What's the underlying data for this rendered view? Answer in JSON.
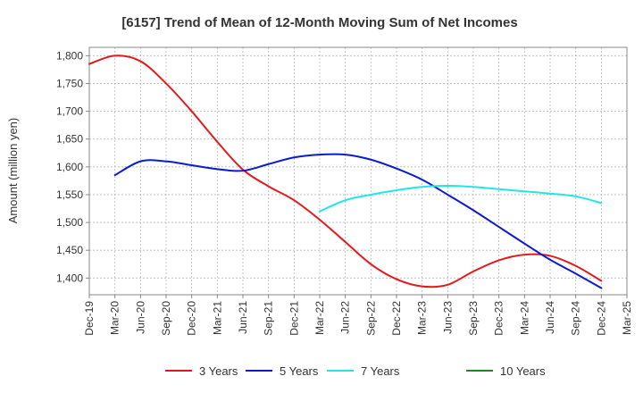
{
  "chart_data": {
    "type": "line",
    "title": "[6157]  Trend of Mean of 12-Month Moving Sum of Net Incomes",
    "ylabel": "Amount (million yen)",
    "xlabel": "",
    "ylim": [
      1370,
      1815
    ],
    "yticks": [
      1400,
      1450,
      1500,
      1550,
      1600,
      1650,
      1700,
      1750,
      1800
    ],
    "ytick_labels": [
      "1,400",
      "1,450",
      "1,500",
      "1,550",
      "1,600",
      "1,650",
      "1,700",
      "1,750",
      "1,800"
    ],
    "categories": [
      "Dec-19",
      "Mar-20",
      "Jun-20",
      "Sep-20",
      "Dec-20",
      "Mar-21",
      "Jun-21",
      "Sep-21",
      "Dec-21",
      "Mar-22",
      "Jun-22",
      "Sep-22",
      "Dec-22",
      "Mar-23",
      "Jun-23",
      "Sep-23",
      "Dec-23",
      "Mar-24",
      "Jun-24",
      "Sep-24",
      "Dec-24",
      "Mar-25"
    ],
    "grid": true,
    "legend_position": "bottom",
    "series": [
      {
        "name": "3 Years",
        "color": "#e31a1c",
        "points": [
          [
            "Dec-19",
            1785
          ],
          [
            "Mar-20",
            1800
          ],
          [
            "Jun-20",
            1790
          ],
          [
            "Sep-20",
            1750
          ],
          [
            "Dec-20",
            1700
          ],
          [
            "Mar-21",
            1645
          ],
          [
            "Jun-21",
            1595
          ],
          [
            "Sep-21",
            1565
          ],
          [
            "Dec-21",
            1540
          ],
          [
            "Mar-22",
            1505
          ],
          [
            "Jun-22",
            1465
          ],
          [
            "Sep-22",
            1425
          ],
          [
            "Dec-22",
            1398
          ],
          [
            "Mar-23",
            1385
          ],
          [
            "Jun-23",
            1388
          ],
          [
            "Sep-23",
            1412
          ],
          [
            "Dec-23",
            1432
          ],
          [
            "Mar-24",
            1442
          ],
          [
            "Jun-24",
            1440
          ],
          [
            "Sep-24",
            1422
          ],
          [
            "Dec-24",
            1395
          ]
        ]
      },
      {
        "name": "5 Years",
        "color": "#0b1bd0",
        "points": [
          [
            "Mar-20",
            1585
          ],
          [
            "Jun-20",
            1610
          ],
          [
            "Sep-20",
            1610
          ],
          [
            "Dec-20",
            1603
          ],
          [
            "Mar-21",
            1596
          ],
          [
            "Jun-21",
            1593
          ],
          [
            "Sep-21",
            1605
          ],
          [
            "Dec-21",
            1617
          ],
          [
            "Mar-22",
            1622
          ],
          [
            "Jun-22",
            1622
          ],
          [
            "Sep-22",
            1613
          ],
          [
            "Dec-22",
            1597
          ],
          [
            "Mar-23",
            1577
          ],
          [
            "Jun-23",
            1550
          ],
          [
            "Sep-23",
            1522
          ],
          [
            "Dec-23",
            1492
          ],
          [
            "Mar-24",
            1462
          ],
          [
            "Jun-24",
            1433
          ],
          [
            "Sep-24",
            1408
          ],
          [
            "Dec-24",
            1382
          ]
        ]
      },
      {
        "name": "7 Years",
        "color": "#22e5e8",
        "points": [
          [
            "Mar-22",
            1520
          ],
          [
            "Jun-22",
            1540
          ],
          [
            "Sep-22",
            1550
          ],
          [
            "Dec-22",
            1558
          ],
          [
            "Mar-23",
            1564
          ],
          [
            "Jun-23",
            1566
          ],
          [
            "Sep-23",
            1564
          ],
          [
            "Dec-23",
            1560
          ],
          [
            "Mar-24",
            1556
          ],
          [
            "Jun-24",
            1552
          ],
          [
            "Sep-24",
            1547
          ],
          [
            "Dec-24",
            1535
          ]
        ]
      },
      {
        "name": "10 Years",
        "color": "#1e8a1e",
        "points": []
      }
    ]
  }
}
